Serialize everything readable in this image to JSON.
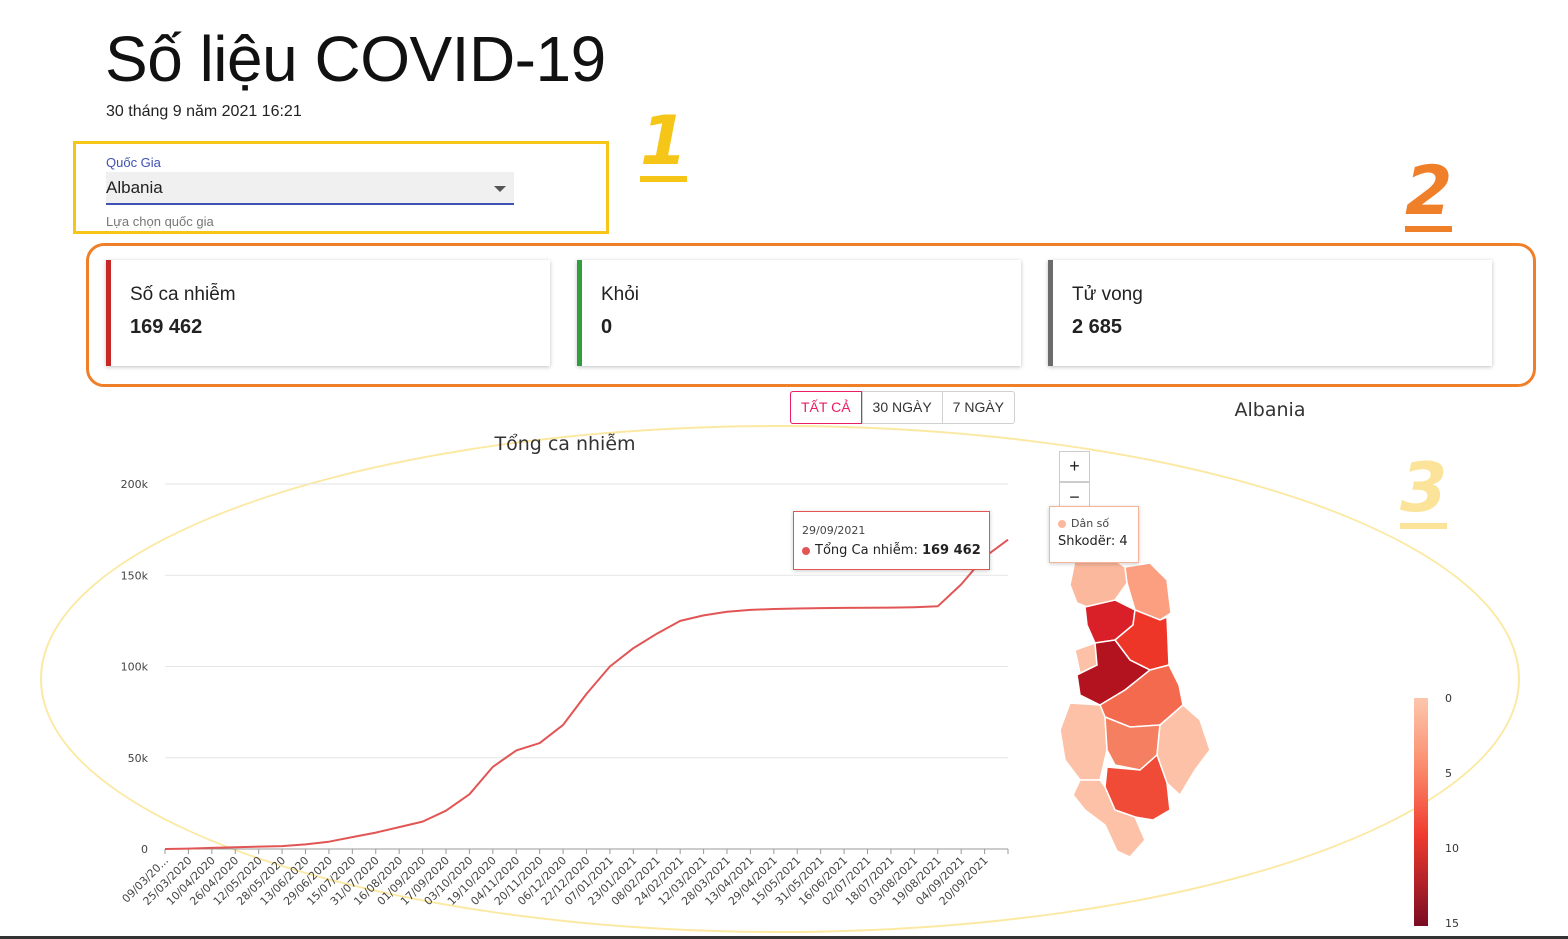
{
  "page": {
    "title": "Số liệu COVID-19",
    "timestamp": "30 tháng 9 năm 2021 16:21"
  },
  "annotations": [
    "1",
    "2",
    "3"
  ],
  "country_select": {
    "label": "Quốc Gia",
    "value": "Albania",
    "helper": "Lựa chọn quốc gia"
  },
  "stats": [
    {
      "label": "Số ca nhiễm",
      "value": "169 462",
      "color": "#c62828"
    },
    {
      "label": "Khỏi",
      "value": "0",
      "color": "#2e9e3e"
    },
    {
      "label": "Tử vong",
      "value": "2 685",
      "color": "#6b6b6b"
    }
  ],
  "range_toggle": {
    "options": [
      "TẤT CẢ",
      "30 NGÀY",
      "7 NGÀY"
    ],
    "selected": "TẤT CẢ"
  },
  "chart_data": {
    "type": "line",
    "title": "Tổng ca nhiễm",
    "series": [
      {
        "name": "Tổng Ca nhiễm",
        "color": "#e25555",
        "values": [
          0,
          200,
          600,
          1000,
          1300,
          1600,
          2500,
          4000,
          6500,
          9000,
          12000,
          15000,
          21000,
          30000,
          45000,
          54000,
          58000,
          68000,
          85000,
          100000,
          110000,
          118000,
          125000,
          128000,
          130000,
          131000,
          131500,
          131800,
          132000,
          132100,
          132200,
          132300,
          132500,
          133000,
          145000,
          160000,
          169462
        ]
      }
    ],
    "x": [
      "09/03/20...",
      "25/03/2020",
      "10/04/2020",
      "26/04/2020",
      "12/05/2020",
      "28/05/2020",
      "13/06/2020",
      "29/06/2020",
      "15/07/2020",
      "31/07/2020",
      "16/08/2020",
      "01/09/2020",
      "17/09/2020",
      "03/10/2020",
      "19/10/2020",
      "04/11/2020",
      "20/11/2020",
      "06/12/2020",
      "22/12/2020",
      "07/01/2021",
      "23/01/2021",
      "08/02/2021",
      "24/02/2021",
      "12/03/2021",
      "28/03/2021",
      "13/04/2021",
      "29/04/2021",
      "15/05/2021",
      "31/05/2021",
      "16/06/2021",
      "02/07/2021",
      "18/07/2021",
      "03/08/2021",
      "19/08/2021",
      "04/09/2021",
      "20/09/2021",
      ""
    ],
    "y_ticks": [
      "0",
      "50k",
      "100k",
      "150k",
      "200k"
    ],
    "ylim": [
      0,
      200000
    ],
    "grid": true
  },
  "tooltip": {
    "date": "29/09/2021",
    "series": "Tổng Ca nhiễm:",
    "value": "169 462"
  },
  "map": {
    "title": "Albania",
    "zoom_in": "+",
    "zoom_out": "−",
    "tooltip": {
      "series": "Dân số",
      "region": "Shkodër:",
      "value": "4"
    },
    "legend": [
      "0",
      "5",
      "10",
      "15"
    ],
    "colors": [
      "#fcbfa4",
      "#fb9a7c",
      "#f2543d",
      "#d91f27",
      "#b3121f"
    ]
  }
}
